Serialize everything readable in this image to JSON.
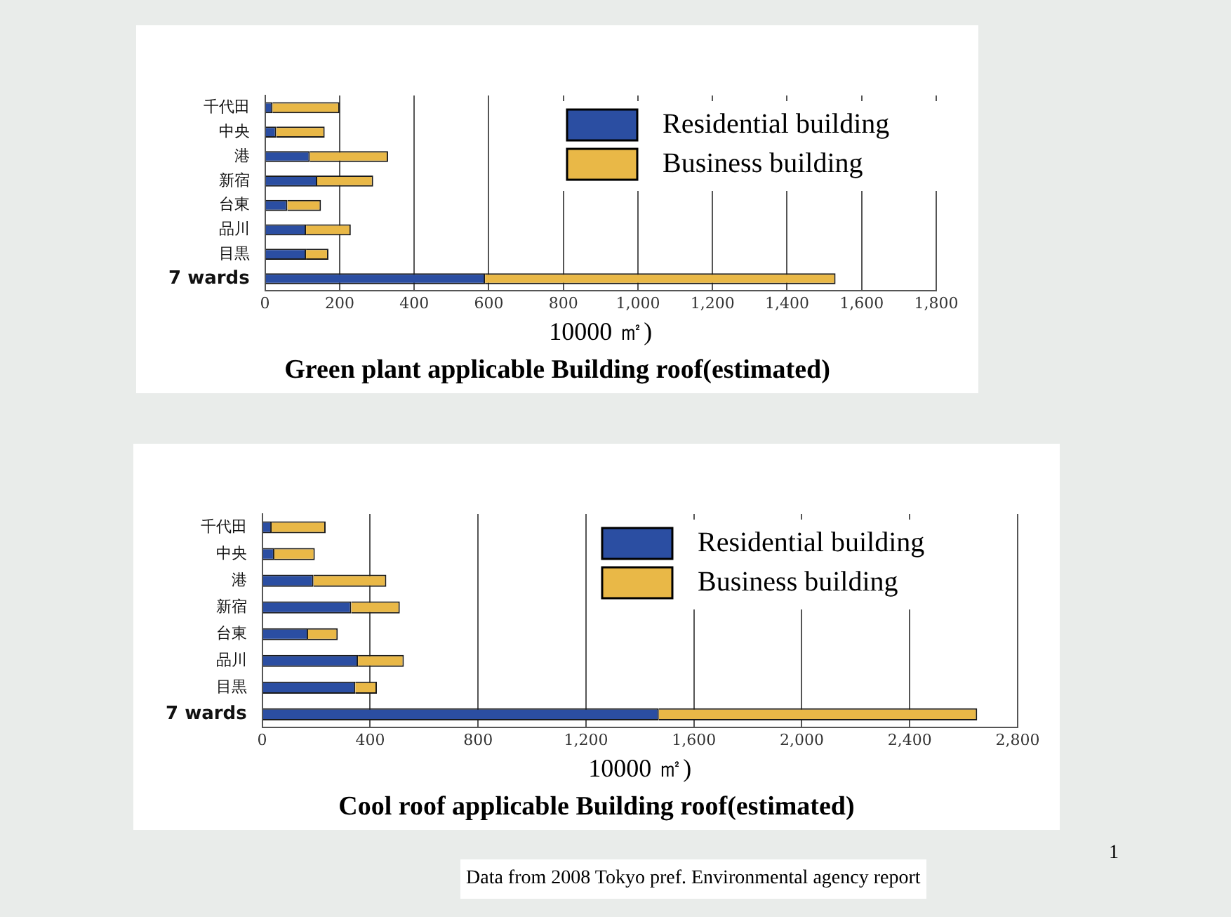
{
  "chart_data": [
    {
      "type": "bar",
      "orientation": "horizontal",
      "stacked": true,
      "title": "Green plant applicable Building roof(estimated)",
      "xlabel": "10000 ㎡)",
      "categories": [
        "千代田",
        "中央",
        "港",
        "新宿",
        "台東",
        "品川",
        "目黒",
        "7 wards"
      ],
      "series": [
        {
          "name": "Residential building",
          "color": "#2b4ea2",
          "values": [
            20,
            30,
            120,
            140,
            60,
            110,
            110,
            590
          ]
        },
        {
          "name": "Business building",
          "color": "#e9b847",
          "values": [
            180,
            130,
            210,
            150,
            90,
            120,
            60,
            940
          ]
        }
      ],
      "xlim": [
        0,
        1800
      ],
      "xticks": [
        0,
        200,
        400,
        600,
        800,
        {
          "value": 1000,
          "label": "1,000"
        },
        {
          "value": 1200,
          "label": "1,200"
        },
        {
          "value": 1400,
          "label": "1,400"
        },
        {
          "value": 1600,
          "label": "1,600"
        },
        {
          "value": 1800,
          "label": "1,800"
        }
      ],
      "grid": "x",
      "legend": "top right"
    },
    {
      "type": "bar",
      "orientation": "horizontal",
      "stacked": true,
      "title": "Cool roof applicable Building roof(estimated)",
      "xlabel": "10000 ㎡)",
      "categories": [
        "千代田",
        "中央",
        "港",
        "新宿",
        "台東",
        "品川",
        "目黒",
        "7 wards"
      ],
      "series": [
        {
          "name": "Residential building",
          "color": "#2b4ea2",
          "values": [
            35,
            45,
            190,
            330,
            170,
            355,
            345,
            1470
          ]
        },
        {
          "name": "Business building",
          "color": "#e9b847",
          "values": [
            200,
            150,
            270,
            180,
            110,
            170,
            80,
            1180
          ]
        }
      ],
      "xlim": [
        0,
        2800
      ],
      "xticks": [
        0,
        400,
        800,
        {
          "value": 1200,
          "label": "1,200"
        },
        {
          "value": 1600,
          "label": "1,600"
        },
        {
          "value": 2000,
          "label": "2,000"
        },
        {
          "value": 2400,
          "label": "2,400"
        },
        {
          "value": 2800,
          "label": "2,800"
        }
      ],
      "grid": "x",
      "legend": "top right",
      "annotations": [
        "1",
        "Data from 2008 Tokyo pref. Environmental agency report"
      ]
    }
  ]
}
